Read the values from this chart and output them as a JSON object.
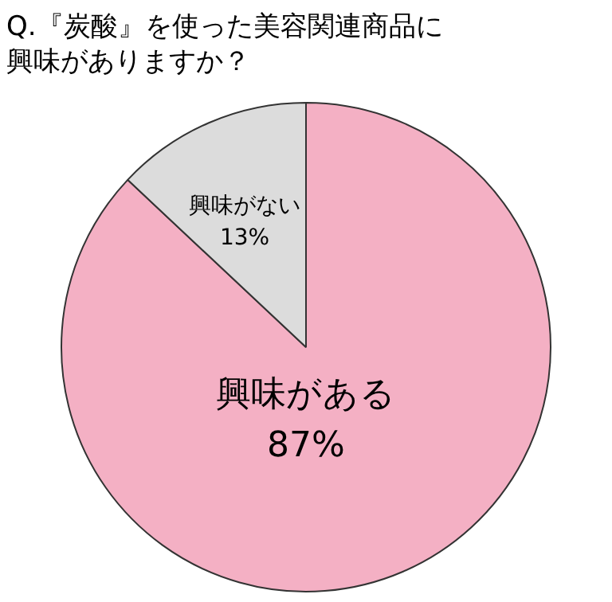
{
  "chart_data": {
    "type": "pie",
    "title": "Q.『炭酸』を使った美容関連商品に興味がありますか？",
    "categories": [
      "興味がある",
      "興味がない"
    ],
    "values": [
      87,
      13
    ],
    "colors": [
      "#f4b0c4",
      "#dcdcdc"
    ],
    "value_labels": [
      "87%",
      "13%"
    ],
    "legend": false
  }
}
